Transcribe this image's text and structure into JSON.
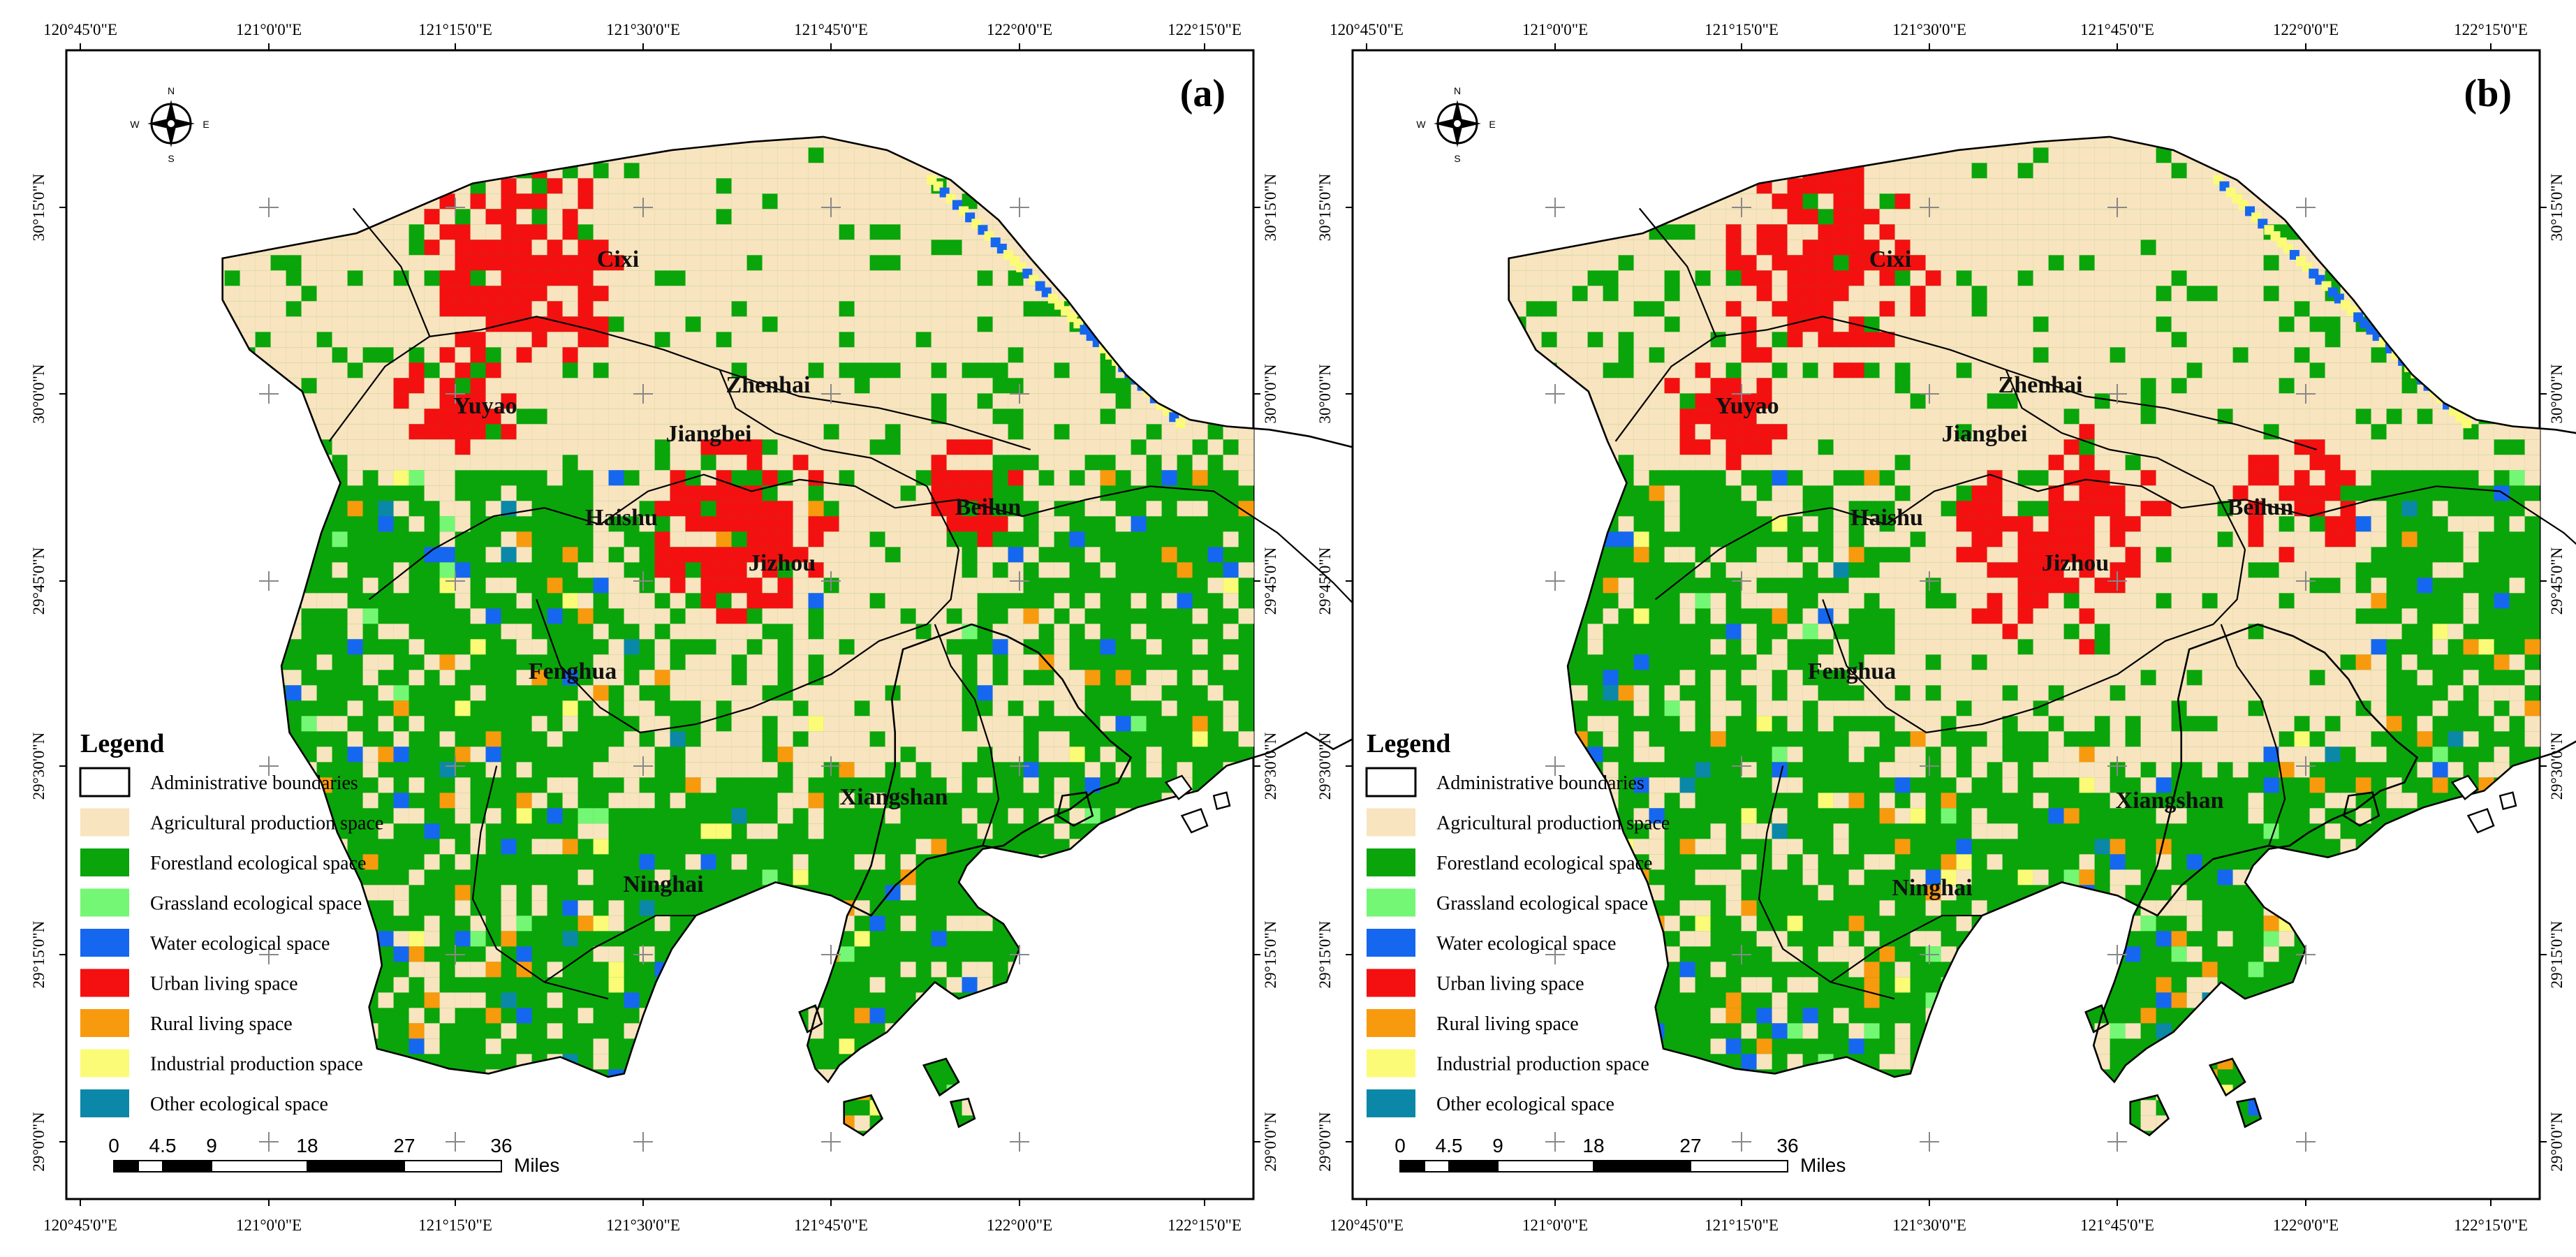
{
  "figure": {
    "panels": [
      {
        "label": "(a)",
        "lon_ticks": [
          "120°45'0\"E",
          "121°0'0\"E",
          "121°15'0\"E",
          "121°30'0\"E",
          "121°45'0\"E",
          "122°0'0\"E",
          "122°15'0\"E"
        ],
        "lat_ticks": [
          "30°15'0\"N",
          "30°0'0\"N",
          "29°45'0\"N",
          "29°30'0\"N",
          "29°15'0\"N",
          "29°0'0\"N"
        ],
        "districts": [
          "Cixi",
          "Yuyao",
          "Zhenhai",
          "Jiangbei",
          "Haishu",
          "Beilun",
          "Jizhou",
          "Fenghua",
          "Xiangshan",
          "Ninghai"
        ],
        "compass": {
          "n": "N",
          "s": "S",
          "e": "E",
          "w": "W"
        },
        "legend": {
          "title": "Legend",
          "items": [
            {
              "label": "Administrative boundaries",
              "color": "#ffffff"
            },
            {
              "label": "Agricultural production space",
              "color": "#f8e4bf"
            },
            {
              "label": "Forestland ecological space",
              "color": "#0aa50a"
            },
            {
              "label": "Grassland ecological space",
              "color": "#74f774"
            },
            {
              "label": "Water ecological space",
              "color": "#1667f0"
            },
            {
              "label": "Urban living space",
              "color": "#f41010"
            },
            {
              "label": "Rural living space",
              "color": "#f89a0e"
            },
            {
              "label": "Industrial production space",
              "color": "#fbfb77"
            },
            {
              "label": "Other ecological space",
              "color": "#0b88a8"
            }
          ]
        },
        "scale": {
          "ticks": [
            "0",
            "4.5",
            "9",
            "18",
            "27",
            "36"
          ],
          "unit": "Miles"
        }
      },
      {
        "label": "(b)",
        "lon_ticks": [
          "120°45'0\"E",
          "121°0'0\"E",
          "121°15'0\"E",
          "121°30'0\"E",
          "121°45'0\"E",
          "122°0'0\"E",
          "122°15'0\"E"
        ],
        "lat_ticks": [
          "30°15'0\"N",
          "30°0'0\"N",
          "29°45'0\"N",
          "29°30'0\"N",
          "29°15'0\"N",
          "29°0'0\"N"
        ],
        "districts": [
          "Cixi",
          "Yuyao",
          "Zhenhai",
          "Jiangbei",
          "Haishu",
          "Beilun",
          "Jizhou",
          "Fenghua",
          "Xiangshan",
          "Ninghai"
        ],
        "compass": {
          "n": "N",
          "s": "S",
          "e": "E",
          "w": "W"
        },
        "legend": {
          "title": "Legend",
          "items": [
            {
              "label": "Administrative boundaries",
              "color": "#ffffff"
            },
            {
              "label": "Agricultural production space",
              "color": "#f8e4bf"
            },
            {
              "label": "Forestland ecological space",
              "color": "#0aa50a"
            },
            {
              "label": "Grassland ecological space",
              "color": "#74f774"
            },
            {
              "label": "Water ecological space",
              "color": "#1667f0"
            },
            {
              "label": "Urban living space",
              "color": "#f41010"
            },
            {
              "label": "Rural living space",
              "color": "#f89a0e"
            },
            {
              "label": "Industrial production space",
              "color": "#fbfb77"
            },
            {
              "label": "Other ecological space",
              "color": "#0b88a8"
            }
          ]
        },
        "scale": {
          "ticks": [
            "0",
            "4.5",
            "9",
            "18",
            "27",
            "36"
          ],
          "unit": "Miles"
        }
      }
    ]
  }
}
